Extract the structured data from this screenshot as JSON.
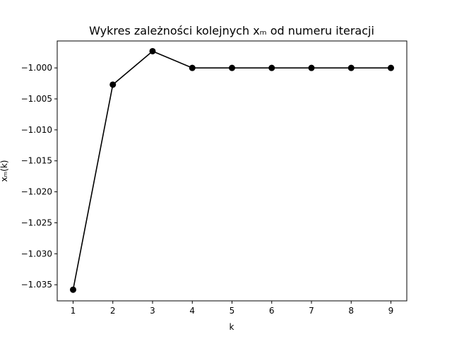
{
  "chart_data": {
    "type": "line",
    "title": "Wykres zależności kolejnych xₘ od numeru iteracji",
    "xlabel": "k",
    "ylabel": "xₘ(k)",
    "x": [
      1,
      2,
      3,
      4,
      5,
      6,
      7,
      8,
      9
    ],
    "y": [
      -1.0358,
      -1.0027,
      -0.9973,
      -1.0,
      -1.0,
      -1.0,
      -1.0,
      -1.0,
      -1.0
    ],
    "xlim": [
      0.6,
      9.4
    ],
    "ylim": [
      -1.0376,
      -0.99565
    ],
    "xticks": [
      1,
      2,
      3,
      4,
      5,
      6,
      7,
      8,
      9
    ],
    "yticks": [
      -1.035,
      -1.03,
      -1.025,
      -1.02,
      -1.015,
      -1.01,
      -1.005,
      -1.0
    ],
    "ytick_labels": [
      "−1.035",
      "−1.030",
      "−1.025",
      "−1.020",
      "−1.015",
      "−1.010",
      "−1.005",
      "−1.000"
    ],
    "xtick_labels": [
      "1",
      "2",
      "3",
      "4",
      "5",
      "6",
      "7",
      "8",
      "9"
    ],
    "grid": false,
    "legend": "none",
    "line_color": "#000000",
    "marker": "circle"
  }
}
